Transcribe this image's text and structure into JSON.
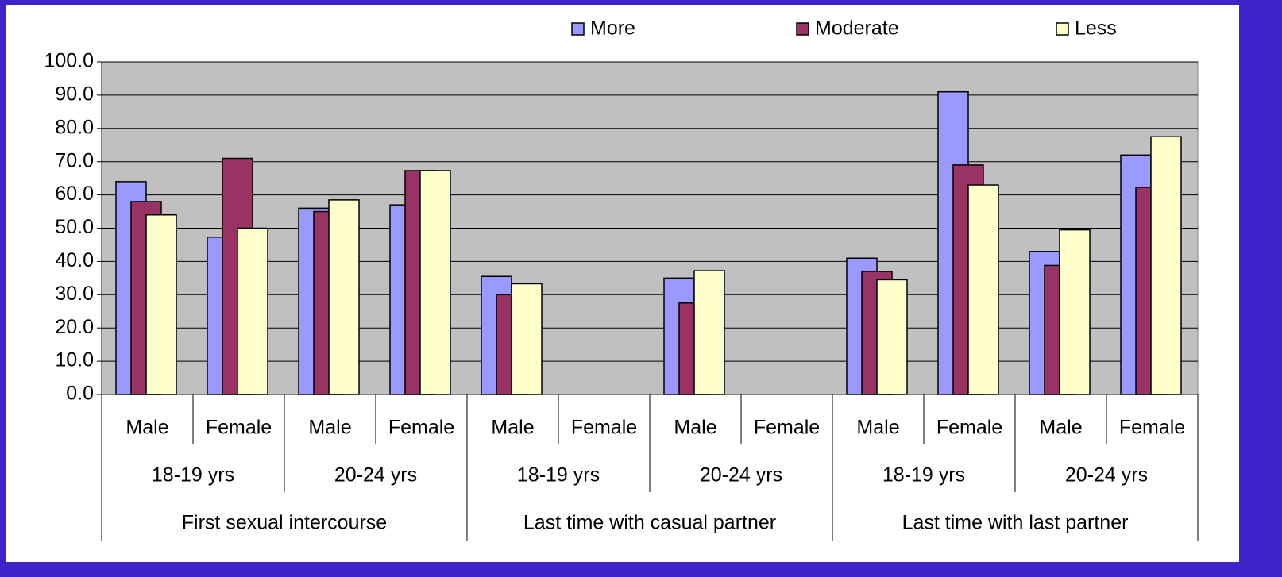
{
  "chart_data": {
    "type": "bar",
    "categories": [
      "Male",
      "Female",
      "Male",
      "Female",
      "Male",
      "Female",
      "Male",
      "Female",
      "Male",
      "Female",
      "Male",
      "Female"
    ],
    "age_groups": [
      "18-19 yrs",
      "20-24 yrs",
      "18-19 yrs",
      "20-24 yrs",
      "18-19 yrs",
      "20-24 yrs"
    ],
    "sections": [
      "First sexual intercourse",
      "Last time with casual partner",
      "Last time with last partner"
    ],
    "series": [
      {
        "name": "More",
        "color": "#9999ff",
        "values": [
          64,
          47.3,
          56,
          57,
          35.5,
          null,
          35,
          null,
          41,
          91,
          43,
          72
        ]
      },
      {
        "name": "Moderate",
        "color": "#993366",
        "values": [
          58,
          71,
          55,
          67.3,
          30,
          null,
          27.5,
          null,
          37,
          69,
          38.8,
          62.3
        ]
      },
      {
        "name": "Less",
        "color": "#ffffcc",
        "values": [
          54,
          50,
          58.5,
          67.3,
          33.3,
          null,
          37.2,
          null,
          34.5,
          63,
          49.5,
          77.5
        ]
      }
    ],
    "ylim": [
      0,
      100
    ],
    "yticks": [
      {
        "value": 0,
        "label": "0.0"
      },
      {
        "value": 10,
        "label": "10.0"
      },
      {
        "value": 20,
        "label": "20.0"
      },
      {
        "value": 30,
        "label": "30.0"
      },
      {
        "value": 40,
        "label": "40.0"
      },
      {
        "value": 50,
        "label": "50.0"
      },
      {
        "value": 60,
        "label": "60.0"
      },
      {
        "value": 70,
        "label": "70.0"
      },
      {
        "value": 80,
        "label": "80.0"
      },
      {
        "value": 90,
        "label": "90.0"
      },
      {
        "value": 100,
        "label": "100.0"
      }
    ],
    "grid": true,
    "legend": "top"
  }
}
